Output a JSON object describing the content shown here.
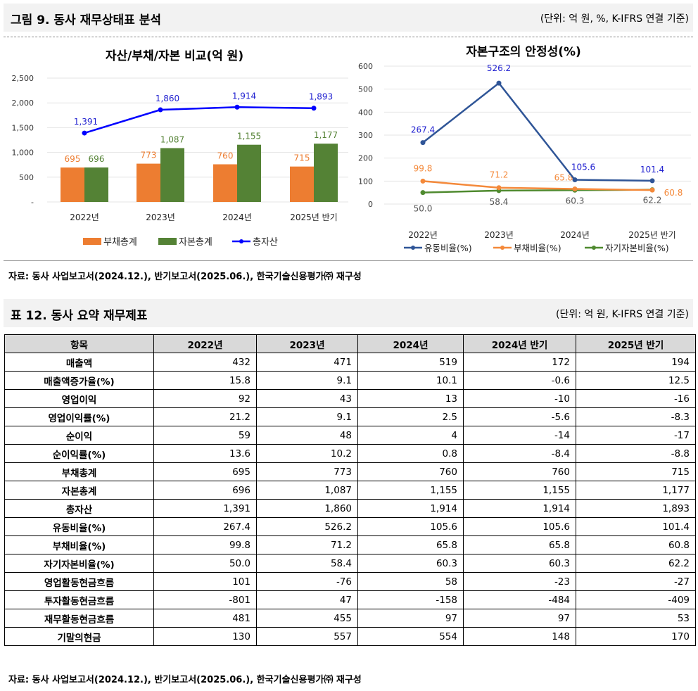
{
  "figure": {
    "title": "그림 9. 동사 재무상태표 분석",
    "unit": "(단위: 억 원, %, K-IFRS 연결 기준)",
    "source": "자료: 동사 사업보고서(2024.12.), 반기보고서(2025.06.), 한국기술신용평가㈜ 재구성"
  },
  "table": {
    "title": "표 12. 동사 요약 재무제표",
    "unit": "(단위: 억 원, K-IFRS 연결 기준)",
    "source": "자료: 동사 사업보고서(2024.12.), 반기보고서(2025.06.), 한국기술신용평가㈜ 재구성",
    "headers": [
      "항목",
      "2022년",
      "2023년",
      "2024년",
      "2024년 반기",
      "2025년 반기"
    ],
    "rows": [
      [
        "매출액",
        "432",
        "471",
        "519",
        "172",
        "194"
      ],
      [
        "매출액증가율(%)",
        "15.8",
        "9.1",
        "10.1",
        "-0.6",
        "12.5"
      ],
      [
        "영업이익",
        "92",
        "43",
        "13",
        "-10",
        "-16"
      ],
      [
        "영업이익률(%)",
        "21.2",
        "9.1",
        "2.5",
        "-5.6",
        "-8.3"
      ],
      [
        "순이익",
        "59",
        "48",
        "4",
        "-14",
        "-17"
      ],
      [
        "순이익률(%)",
        "13.6",
        "10.2",
        "0.8",
        "-8.4",
        "-8.8"
      ],
      [
        "부채총계",
        "695",
        "773",
        "760",
        "760",
        "715"
      ],
      [
        "자본총계",
        "696",
        "1,087",
        "1,155",
        "1,155",
        "1,177"
      ],
      [
        "총자산",
        "1,391",
        "1,860",
        "1,914",
        "1,914",
        "1,893"
      ],
      [
        "유동비율(%)",
        "267.4",
        "526.2",
        "105.6",
        "105.6",
        "101.4"
      ],
      [
        "부채비율(%)",
        "99.8",
        "71.2",
        "65.8",
        "65.8",
        "60.8"
      ],
      [
        "자기자본비율(%)",
        "50.0",
        "58.4",
        "60.3",
        "60.3",
        "62.2"
      ],
      [
        "영업활동현금흐름",
        "101",
        "-76",
        "58",
        "-23",
        "-27"
      ],
      [
        "투자활동현금흐름",
        "-801",
        "47",
        "-158",
        "-484",
        "-409"
      ],
      [
        "재무활동현금흐름",
        "481",
        "455",
        "97",
        "97",
        "53"
      ],
      [
        "기말의현금",
        "130",
        "557",
        "554",
        "148",
        "170"
      ]
    ]
  },
  "chart_data": [
    {
      "type": "bar",
      "title": "자산/부채/자본 비교(억 원)",
      "categories": [
        "2022년",
        "2023년",
        "2024년",
        "2025년 반기"
      ],
      "ylim": [
        0,
        2500
      ],
      "yticks": [
        "-",
        "500",
        "1,000",
        "1,500",
        "2,000",
        "2,500"
      ],
      "grid": true,
      "legend": "bottom",
      "series": [
        {
          "name": "부채총계",
          "kind": "bar",
          "color": "#ed7d31",
          "values": [
            695,
            773,
            760,
            715
          ],
          "labels": [
            "695",
            "773",
            "760",
            "715"
          ]
        },
        {
          "name": "자본총계",
          "kind": "bar",
          "color": "#548235",
          "values": [
            696,
            1087,
            1155,
            1177
          ],
          "labels": [
            "696",
            "1,087",
            "1,155",
            "1,177"
          ]
        },
        {
          "name": "총자산",
          "kind": "line",
          "color": "#0000ff",
          "values": [
            1391,
            1860,
            1914,
            1893
          ],
          "labels": [
            "1,391",
            "1,860",
            "1,914",
            "1,893"
          ]
        }
      ]
    },
    {
      "type": "line",
      "title": "자본구조의 안정성(%)",
      "categories": [
        "2022년",
        "2023년",
        "2024년",
        "2025년 반기"
      ],
      "ylim": [
        0,
        600
      ],
      "yticks": [
        "0",
        "100",
        "200",
        "300",
        "400",
        "500",
        "600"
      ],
      "grid": true,
      "legend": "bottom",
      "series": [
        {
          "name": "유동비율(%)",
          "color": "#2f5597",
          "labelColor": "#1f1fd0",
          "values": [
            267.4,
            526.2,
            105.6,
            101.4
          ]
        },
        {
          "name": "부채비율(%)",
          "color": "#f4893a",
          "labelColor": "#f4893a",
          "values": [
            99.8,
            71.2,
            65.8,
            60.8
          ]
        },
        {
          "name": "자기자본비율(%)",
          "color": "#4f8a2f",
          "labelColor": "#555",
          "values": [
            50.0,
            58.4,
            60.3,
            62.2
          ]
        }
      ]
    }
  ]
}
